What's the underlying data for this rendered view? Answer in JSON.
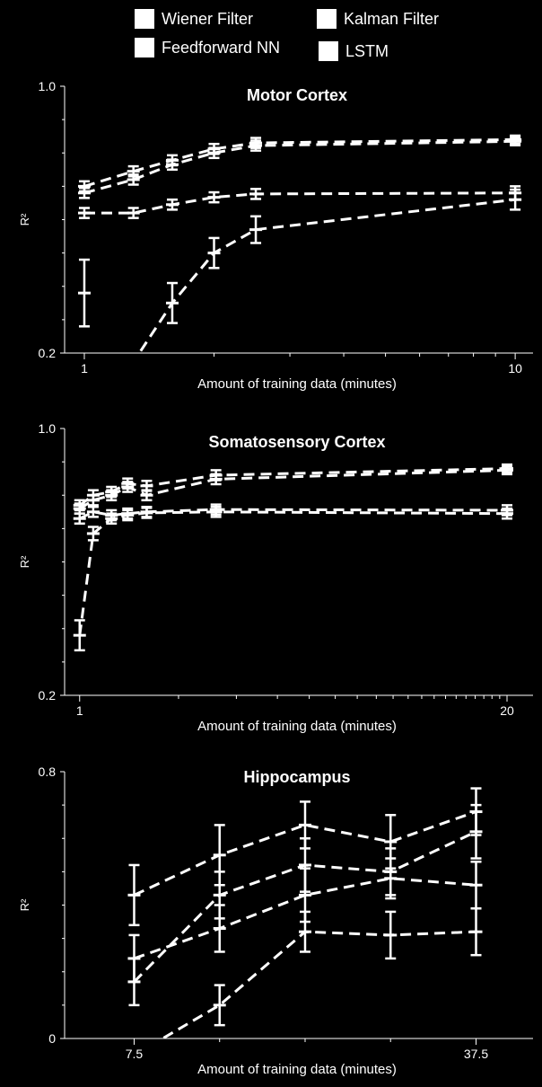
{
  "legend": {
    "items": [
      {
        "label": "Wiener Filter"
      },
      {
        "label": "Kalman Filter"
      },
      {
        "label": "Feedforward NN"
      },
      {
        "label": "LSTM"
      }
    ]
  },
  "chart_data": [
    {
      "type": "line",
      "title": "Motor Cortex",
      "xlabel": "Amount of training data (minutes)",
      "ylabel": "R²",
      "xscale": "log",
      "xlim": [
        0.9,
        11
      ],
      "ylim": [
        0.2,
        1.0
      ],
      "yticks": [
        {
          "value": 0.2,
          "label": "0.2"
        },
        {
          "value": 1.0,
          "label": "1.0"
        }
      ],
      "xticks": [
        {
          "value": 1,
          "label": "1"
        },
        {
          "value": 10,
          "label": "10"
        }
      ],
      "minor_xticks": [
        2,
        3,
        4,
        5,
        6,
        7,
        8,
        9
      ],
      "series": [
        {
          "x": [
            1,
            1.3,
            1.6,
            2,
            2.5,
            10
          ],
          "y": [
            0.7,
            0.745,
            0.778,
            0.812,
            0.83,
            0.84
          ],
          "err": [
            0.015,
            0.015,
            0.015,
            0.015,
            0.015,
            0.012
          ]
        },
        {
          "x": [
            1,
            1.3,
            1.6,
            2,
            2.5,
            10
          ],
          "y": [
            0.68,
            0.72,
            0.765,
            0.8,
            0.822,
            0.835
          ],
          "err": [
            0.015,
            0.015,
            0.015,
            0.015,
            0.015,
            0.012
          ]
        },
        {
          "x": [
            1,
            1.3,
            1.6,
            2,
            2.5,
            10
          ],
          "y": [
            0.62,
            0.62,
            0.645,
            0.667,
            0.677,
            0.68
          ],
          "err": [
            0.015,
            0.015,
            0.015,
            0.015,
            0.015,
            0.02
          ]
        },
        {
          "x": [
            1,
            1.6,
            2,
            2.5,
            10
          ],
          "y": [
            -0.05,
            0.35,
            0.5,
            0.57,
            0.66
          ],
          "err": [
            0.1,
            0.06,
            0.045,
            0.04,
            0.03
          ]
        },
        {
          "x": [
            1
          ],
          "y": [
            0.38
          ],
          "err": [
            0.1
          ]
        }
      ]
    },
    {
      "type": "line",
      "title": "Somatosensory Cortex",
      "xlabel": "Amount of training data (minutes)",
      "ylabel": "R²",
      "xscale": "log",
      "xlim": [
        0.9,
        24
      ],
      "ylim": [
        0.2,
        1.0
      ],
      "yticks": [
        {
          "value": 0.2,
          "label": "0.2"
        },
        {
          "value": 1.0,
          "label": "1.0"
        }
      ],
      "xticks": [
        {
          "value": 1,
          "label": "1"
        },
        {
          "value": 20,
          "label": "20"
        }
      ],
      "minor_xticks": [
        2,
        3,
        4,
        5,
        6,
        7,
        8,
        9,
        10,
        11,
        12,
        13,
        14,
        15,
        16,
        17,
        18,
        19
      ],
      "series": [
        {
          "x": [
            1,
            1.1,
            1.25,
            1.4,
            1.6,
            2.6,
            20
          ],
          "y": [
            0.77,
            0.8,
            0.81,
            0.835,
            0.828,
            0.86,
            0.88
          ],
          "err": [
            0.015,
            0.015,
            0.015,
            0.015,
            0.015,
            0.015,
            0.012
          ]
        },
        {
          "x": [
            1,
            1.1,
            1.25,
            1.4,
            1.6,
            2.6,
            20
          ],
          "y": [
            0.76,
            0.785,
            0.8,
            0.825,
            0.8,
            0.848,
            0.875
          ],
          "err": [
            0.015,
            0.015,
            0.015,
            0.015,
            0.015,
            0.015,
            0.012
          ]
        },
        {
          "x": [
            1,
            1.1,
            1.25,
            1.4,
            1.6,
            2.6,
            20
          ],
          "y": [
            0.73,
            0.75,
            0.74,
            0.745,
            0.75,
            0.757,
            0.755
          ],
          "err": [
            0.015,
            0.015,
            0.015,
            0.015,
            0.015,
            0.015,
            0.015
          ]
        },
        {
          "x": [
            1,
            1.1,
            1.25,
            1.4,
            1.6,
            2.6,
            20
          ],
          "y": [
            0.38,
            0.685,
            0.73,
            0.74,
            0.747,
            0.75,
            0.745
          ],
          "err": [
            0.045,
            0.02,
            0.015,
            0.015,
            0.015,
            0.015,
            0.015
          ]
        }
      ]
    },
    {
      "type": "line",
      "title": "Hippocampus",
      "xlabel": "Amount of training data (minutes)",
      "ylabel": "R²",
      "xscale": "linear",
      "xlim": [
        1.4,
        42.5
      ],
      "ylim": [
        0,
        0.8
      ],
      "yticks": [
        {
          "value": 0,
          "label": "0"
        },
        {
          "value": 0.8,
          "label": "0.8"
        }
      ],
      "xticks": [
        {
          "value": 7.5,
          "label": "7.5"
        },
        {
          "value": 37.5,
          "label": "37.5"
        }
      ],
      "minor_xticks": [
        15,
        22.5,
        30
      ],
      "series": [
        {
          "x": [
            7.5,
            15,
            22.5,
            30,
            37.5
          ],
          "y": [
            0.43,
            0.55,
            0.64,
            0.59,
            0.68
          ],
          "err": [
            0.09,
            0.09,
            0.07,
            0.08,
            0.07
          ]
        },
        {
          "x": [
            7.5,
            15,
            22.5,
            30,
            37.5
          ],
          "y": [
            0.17,
            0.43,
            0.52,
            0.5,
            0.62
          ],
          "err": [
            0.07,
            0.07,
            0.08,
            0.07,
            0.08
          ]
        },
        {
          "x": [
            7.5,
            15,
            22.5,
            30,
            37.5
          ],
          "y": [
            0.24,
            0.33,
            0.43,
            0.48,
            0.46
          ],
          "err": [
            0.07,
            0.07,
            0.08,
            0.06,
            0.07
          ]
        },
        {
          "x": [
            7.5,
            15,
            22.5,
            30,
            37.5
          ],
          "y": [
            -0.05,
            0.1,
            0.32,
            0.31,
            0.32
          ],
          "err": [
            0.04,
            0.06,
            0.06,
            0.07,
            0.07
          ]
        }
      ]
    }
  ]
}
